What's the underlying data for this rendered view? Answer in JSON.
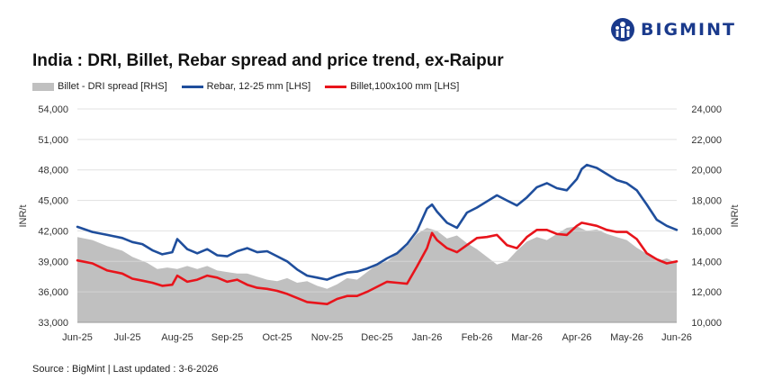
{
  "brand": {
    "logo_text": "BIGMINT",
    "logo_color": "#1a3a8c"
  },
  "footer": {
    "source": "Source : BigMint | Last updated : 3-6-2026"
  },
  "chart_data": {
    "type": "line",
    "title": "India : DRI, Billet, Rebar spread and price trend, ex-Raipur",
    "ylabel_left": "INR/t",
    "ylabel_right": "INR/t",
    "ylim_left": [
      33000,
      54000
    ],
    "ylim_right": [
      10000,
      24000
    ],
    "yticks_left": [
      "33,000",
      "36,000",
      "39,000",
      "42,000",
      "45,000",
      "48,000",
      "51,000",
      "54,000"
    ],
    "yticks_right": [
      "10,000",
      "12,000",
      "14,000",
      "16,000",
      "18,000",
      "20,000",
      "22,000",
      "24,000"
    ],
    "x_categories": [
      "Jun-25",
      "Jul-25",
      "Aug-25",
      "Sep-25",
      "Oct-25",
      "Nov-25",
      "Dec-25",
      "Jan-26",
      "Feb-26",
      "Mar-26",
      "Apr-26",
      "May-26",
      "Jun-26"
    ],
    "grid": true,
    "legend_position": "top-left",
    "series": [
      {
        "name": "Billet - DRI spread  [RHS]",
        "axis": "right",
        "kind": "area",
        "color": "#c0c0c0",
        "points": [
          [
            0,
            15600
          ],
          [
            0.3,
            15400
          ],
          [
            0.6,
            15000
          ],
          [
            0.9,
            14700
          ],
          [
            1.1,
            14300
          ],
          [
            1.4,
            13900
          ],
          [
            1.6,
            13500
          ],
          [
            1.8,
            13600
          ],
          [
            2.0,
            13500
          ],
          [
            2.2,
            13700
          ],
          [
            2.4,
            13500
          ],
          [
            2.6,
            13700
          ],
          [
            2.8,
            13400
          ],
          [
            3.0,
            13300
          ],
          [
            3.2,
            13200
          ],
          [
            3.4,
            13200
          ],
          [
            3.6,
            13000
          ],
          [
            3.8,
            12800
          ],
          [
            4.0,
            12700
          ],
          [
            4.2,
            12900
          ],
          [
            4.4,
            12600
          ],
          [
            4.6,
            12700
          ],
          [
            4.8,
            12400
          ],
          [
            5.0,
            12200
          ],
          [
            5.2,
            12500
          ],
          [
            5.4,
            12900
          ],
          [
            5.6,
            12800
          ],
          [
            5.8,
            13300
          ],
          [
            6.0,
            13800
          ],
          [
            6.2,
            14000
          ],
          [
            6.4,
            14500
          ],
          [
            6.6,
            15000
          ],
          [
            6.8,
            15800
          ],
          [
            7.0,
            16200
          ],
          [
            7.2,
            16000
          ],
          [
            7.4,
            15500
          ],
          [
            7.6,
            15700
          ],
          [
            7.8,
            15200
          ],
          [
            8.0,
            14800
          ],
          [
            8.2,
            14300
          ],
          [
            8.4,
            13800
          ],
          [
            8.6,
            14000
          ],
          [
            8.8,
            14700
          ],
          [
            9.0,
            15300
          ],
          [
            9.2,
            15600
          ],
          [
            9.4,
            15400
          ],
          [
            9.6,
            15800
          ],
          [
            9.8,
            16200
          ],
          [
            10.0,
            16300
          ],
          [
            10.2,
            16000
          ],
          [
            10.4,
            16100
          ],
          [
            10.6,
            15800
          ],
          [
            10.8,
            15600
          ],
          [
            11.0,
            15400
          ],
          [
            11.2,
            14900
          ],
          [
            11.4,
            14500
          ],
          [
            11.6,
            14000
          ],
          [
            11.8,
            14200
          ],
          [
            12.0,
            13900
          ]
        ]
      },
      {
        "name": "Rebar, 12-25 mm [LHS]",
        "axis": "left",
        "kind": "line",
        "color": "#1f4e9c",
        "points": [
          [
            0,
            42400
          ],
          [
            0.3,
            41900
          ],
          [
            0.6,
            41600
          ],
          [
            0.9,
            41300
          ],
          [
            1.1,
            40900
          ],
          [
            1.3,
            40700
          ],
          [
            1.5,
            40100
          ],
          [
            1.7,
            39700
          ],
          [
            1.9,
            39900
          ],
          [
            2.0,
            41200
          ],
          [
            2.2,
            40200
          ],
          [
            2.4,
            39800
          ],
          [
            2.6,
            40200
          ],
          [
            2.8,
            39600
          ],
          [
            3.0,
            39500
          ],
          [
            3.2,
            40000
          ],
          [
            3.4,
            40300
          ],
          [
            3.6,
            39900
          ],
          [
            3.8,
            40000
          ],
          [
            4.0,
            39500
          ],
          [
            4.2,
            39000
          ],
          [
            4.4,
            38200
          ],
          [
            4.6,
            37600
          ],
          [
            4.8,
            37400
          ],
          [
            5.0,
            37200
          ],
          [
            5.2,
            37600
          ],
          [
            5.4,
            37900
          ],
          [
            5.6,
            38000
          ],
          [
            5.8,
            38300
          ],
          [
            6.0,
            38700
          ],
          [
            6.2,
            39300
          ],
          [
            6.4,
            39800
          ],
          [
            6.6,
            40700
          ],
          [
            6.8,
            42000
          ],
          [
            7.0,
            44200
          ],
          [
            7.1,
            44600
          ],
          [
            7.2,
            43900
          ],
          [
            7.4,
            42800
          ],
          [
            7.6,
            42300
          ],
          [
            7.8,
            43800
          ],
          [
            8.0,
            44300
          ],
          [
            8.2,
            44900
          ],
          [
            8.4,
            45500
          ],
          [
            8.6,
            45000
          ],
          [
            8.8,
            44500
          ],
          [
            9.0,
            45300
          ],
          [
            9.2,
            46300
          ],
          [
            9.4,
            46700
          ],
          [
            9.6,
            46200
          ],
          [
            9.8,
            46000
          ],
          [
            10.0,
            47100
          ],
          [
            10.1,
            48100
          ],
          [
            10.2,
            48500
          ],
          [
            10.4,
            48200
          ],
          [
            10.6,
            47600
          ],
          [
            10.8,
            47000
          ],
          [
            11.0,
            46700
          ],
          [
            11.2,
            46000
          ],
          [
            11.4,
            44600
          ],
          [
            11.6,
            43100
          ],
          [
            11.8,
            42500
          ],
          [
            12.0,
            42100
          ]
        ]
      },
      {
        "name": "Billet,100x100 mm [LHS]",
        "axis": "left",
        "kind": "line",
        "color": "#e8141b",
        "points": [
          [
            0,
            39100
          ],
          [
            0.3,
            38800
          ],
          [
            0.6,
            38100
          ],
          [
            0.9,
            37800
          ],
          [
            1.1,
            37300
          ],
          [
            1.3,
            37100
          ],
          [
            1.5,
            36900
          ],
          [
            1.7,
            36600
          ],
          [
            1.9,
            36700
          ],
          [
            2.0,
            37600
          ],
          [
            2.2,
            37000
          ],
          [
            2.4,
            37200
          ],
          [
            2.6,
            37600
          ],
          [
            2.8,
            37400
          ],
          [
            3.0,
            37000
          ],
          [
            3.2,
            37200
          ],
          [
            3.4,
            36700
          ],
          [
            3.6,
            36400
          ],
          [
            3.8,
            36300
          ],
          [
            4.0,
            36100
          ],
          [
            4.2,
            35800
          ],
          [
            4.4,
            35400
          ],
          [
            4.6,
            35000
          ],
          [
            4.8,
            34900
          ],
          [
            5.0,
            34800
          ],
          [
            5.2,
            35300
          ],
          [
            5.4,
            35600
          ],
          [
            5.6,
            35600
          ],
          [
            5.8,
            36000
          ],
          [
            6.0,
            36500
          ],
          [
            6.2,
            37000
          ],
          [
            6.4,
            36900
          ],
          [
            6.6,
            36800
          ],
          [
            6.8,
            38500
          ],
          [
            7.0,
            40300
          ],
          [
            7.1,
            41800
          ],
          [
            7.2,
            41100
          ],
          [
            7.4,
            40300
          ],
          [
            7.6,
            39900
          ],
          [
            7.8,
            40600
          ],
          [
            8.0,
            41300
          ],
          [
            8.2,
            41400
          ],
          [
            8.4,
            41600
          ],
          [
            8.6,
            40600
          ],
          [
            8.8,
            40300
          ],
          [
            9.0,
            41400
          ],
          [
            9.2,
            42100
          ],
          [
            9.4,
            42100
          ],
          [
            9.6,
            41700
          ],
          [
            9.8,
            41600
          ],
          [
            10.0,
            42500
          ],
          [
            10.1,
            42800
          ],
          [
            10.2,
            42700
          ],
          [
            10.4,
            42500
          ],
          [
            10.6,
            42100
          ],
          [
            10.8,
            41900
          ],
          [
            11.0,
            41900
          ],
          [
            11.2,
            41200
          ],
          [
            11.4,
            39800
          ],
          [
            11.6,
            39200
          ],
          [
            11.8,
            38800
          ],
          [
            12.0,
            39000
          ]
        ]
      }
    ]
  }
}
